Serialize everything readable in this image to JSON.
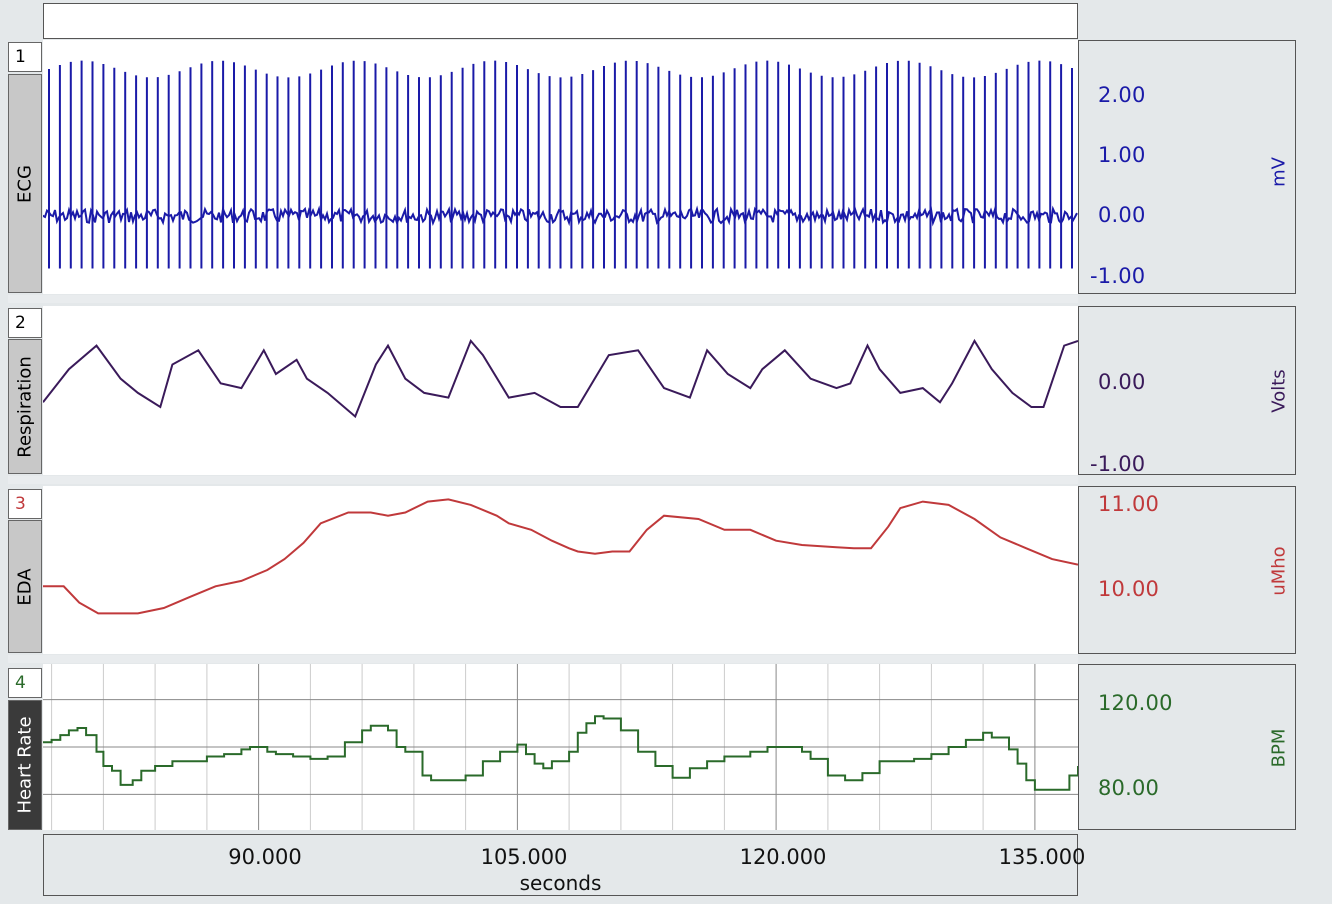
{
  "window": {
    "top_bar_text": ""
  },
  "channels": [
    {
      "number": "1",
      "label": "ECG",
      "unit": "mV",
      "color": "#1a1aa8",
      "ticks": [
        "2.00",
        "1.00",
        "0.00",
        "-1.00"
      ]
    },
    {
      "number": "2",
      "label": "Respiration",
      "unit": "Volts",
      "color": "#3a1a5a",
      "ticks": [
        "0.00",
        "-1.00"
      ]
    },
    {
      "number": "3",
      "label": "EDA",
      "unit": "uMho",
      "color": "#c0393b",
      "ticks": [
        "11.00",
        "10.00"
      ]
    },
    {
      "number": "4",
      "label": "Heart Rate",
      "unit": "BPM",
      "color": "#2a6a2a",
      "ticks": [
        "120.00",
        "80.00"
      ]
    }
  ],
  "x_axis": {
    "label": "seconds",
    "ticks": [
      "90.000",
      "105.000",
      "120.000",
      "135.000"
    ]
  },
  "chart_data": [
    {
      "type": "line",
      "channel": "ECG",
      "ylabel": "mV",
      "ylim": [
        -1.0,
        2.4
      ],
      "xlim": [
        77.5,
        137.5
      ],
      "beats_per_screen": 95,
      "r_peak_mV_approx": 2.1,
      "s_trough_mV_approx": -0.75,
      "baseline_mV": 0.0
    },
    {
      "type": "line",
      "channel": "Respiration",
      "ylabel": "Volts",
      "ylim": [
        -1.0,
        0.45
      ],
      "xlim": [
        77.5,
        137.5
      ],
      "x": [
        77.5,
        79.0,
        80.6,
        82.0,
        83.0,
        84.3,
        85.0,
        86.5,
        87.8,
        89.0,
        90.3,
        91.0,
        92.2,
        92.8,
        94.0,
        95.6,
        96.8,
        97.5,
        98.5,
        99.6,
        101.0,
        102.3,
        103.0,
        104.5,
        106.0,
        107.5,
        108.5,
        110.3,
        112.0,
        113.5,
        115.0,
        116.0,
        117.2,
        118.5,
        119.2,
        120.5,
        122.0,
        123.5,
        124.3,
        125.3,
        126.0,
        127.2,
        128.5,
        129.5,
        130.2,
        131.5,
        132.5,
        133.7,
        134.8,
        135.5,
        136.7,
        137.5
      ],
      "y": [
        -0.4,
        -0.05,
        0.2,
        -0.15,
        -0.3,
        -0.45,
        0.0,
        0.15,
        -0.2,
        -0.25,
        0.15,
        -0.1,
        0.05,
        -0.15,
        -0.3,
        -0.55,
        0.0,
        0.2,
        -0.15,
        -0.3,
        -0.35,
        0.25,
        0.1,
        -0.35,
        -0.3,
        -0.45,
        -0.45,
        0.1,
        0.15,
        -0.25,
        -0.35,
        0.15,
        -0.1,
        -0.25,
        -0.05,
        0.15,
        -0.15,
        -0.25,
        -0.2,
        0.2,
        -0.05,
        -0.3,
        -0.25,
        -0.4,
        -0.2,
        0.25,
        -0.05,
        -0.3,
        -0.45,
        -0.45,
        0.2,
        0.25
      ]
    },
    {
      "type": "line",
      "channel": "EDA",
      "ylabel": "uMho",
      "ylim": [
        9.65,
        11.05
      ],
      "xlim": [
        77.5,
        137.5
      ],
      "x": [
        77.5,
        78.7,
        79.6,
        80.7,
        81.5,
        83.0,
        84.5,
        86.0,
        87.5,
        89.0,
        90.5,
        91.5,
        92.6,
        93.6,
        95.2,
        96.5,
        97.5,
        98.5,
        99.8,
        101.0,
        102.3,
        103.8,
        104.5,
        105.8,
        107.0,
        108.0,
        108.5,
        109.5,
        110.5,
        111.5,
        112.5,
        113.5,
        115.5,
        117.0,
        118.5,
        120.0,
        121.5,
        122.5,
        123.5,
        124.5,
        125.5,
        126.5,
        127.2,
        128.5,
        130.0,
        131.5,
        133.0,
        134.5,
        136.0,
        137.5
      ],
      "y": [
        10.2,
        10.2,
        10.05,
        9.95,
        9.95,
        9.95,
        10.0,
        10.1,
        10.2,
        10.25,
        10.35,
        10.45,
        10.6,
        10.78,
        10.88,
        10.88,
        10.85,
        10.88,
        10.98,
        11.0,
        10.95,
        10.85,
        10.78,
        10.72,
        10.62,
        10.55,
        10.52,
        10.5,
        10.52,
        10.52,
        10.72,
        10.85,
        10.82,
        10.72,
        10.72,
        10.62,
        10.58,
        10.57,
        10.56,
        10.55,
        10.55,
        10.75,
        10.92,
        10.98,
        10.95,
        10.82,
        10.65,
        10.55,
        10.45,
        10.4
      ]
    },
    {
      "type": "line",
      "channel": "Heart Rate",
      "ylabel": "BPM",
      "ylim": [
        65,
        135
      ],
      "xlim": [
        77.5,
        137.5
      ],
      "grid": true,
      "x": [
        77.5,
        78.0,
        78.5,
        79.0,
        79.5,
        80.0,
        80.6,
        81.0,
        81.5,
        82.0,
        82.7,
        83.2,
        84.0,
        85.0,
        86.0,
        87.0,
        88.0,
        89.0,
        89.5,
        90.5,
        91.0,
        92.0,
        93.0,
        94.0,
        95.0,
        96.0,
        96.5,
        97.5,
        98.0,
        98.5,
        99.5,
        100.0,
        101.0,
        102.0,
        103.0,
        104.0,
        105.0,
        105.5,
        106.0,
        106.5,
        107.0,
        108.0,
        108.5,
        109.0,
        109.5,
        110.0,
        111.0,
        112.0,
        113.0,
        114.0,
        114.6,
        115.0,
        116.0,
        117.0,
        118.0,
        118.5,
        119.5,
        120.5,
        121.5,
        122.0,
        123.0,
        124.0,
        125.0,
        126.0,
        127.0,
        128.0,
        129.0,
        130.0,
        131.0,
        132.0,
        132.5,
        133.5,
        134.0,
        134.5,
        135.0,
        136.0,
        137.0,
        137.5
      ],
      "y": [
        102,
        103,
        105,
        107,
        108,
        105,
        98,
        92,
        90,
        84,
        86,
        90,
        92,
        94,
        94,
        96,
        97,
        99,
        100,
        98,
        97,
        96,
        95,
        96,
        102,
        107,
        109,
        107,
        100,
        98,
        88,
        86,
        86,
        88,
        94,
        98,
        101,
        97,
        93,
        91,
        94,
        98,
        106,
        110,
        113,
        112,
        107,
        98,
        92,
        87,
        87,
        91,
        94,
        96,
        96,
        98,
        100,
        100,
        98,
        95,
        88,
        86,
        89,
        94,
        94,
        95,
        97,
        100,
        103,
        106,
        104,
        99,
        93,
        86,
        82,
        82,
        88,
        92
      ]
    }
  ]
}
